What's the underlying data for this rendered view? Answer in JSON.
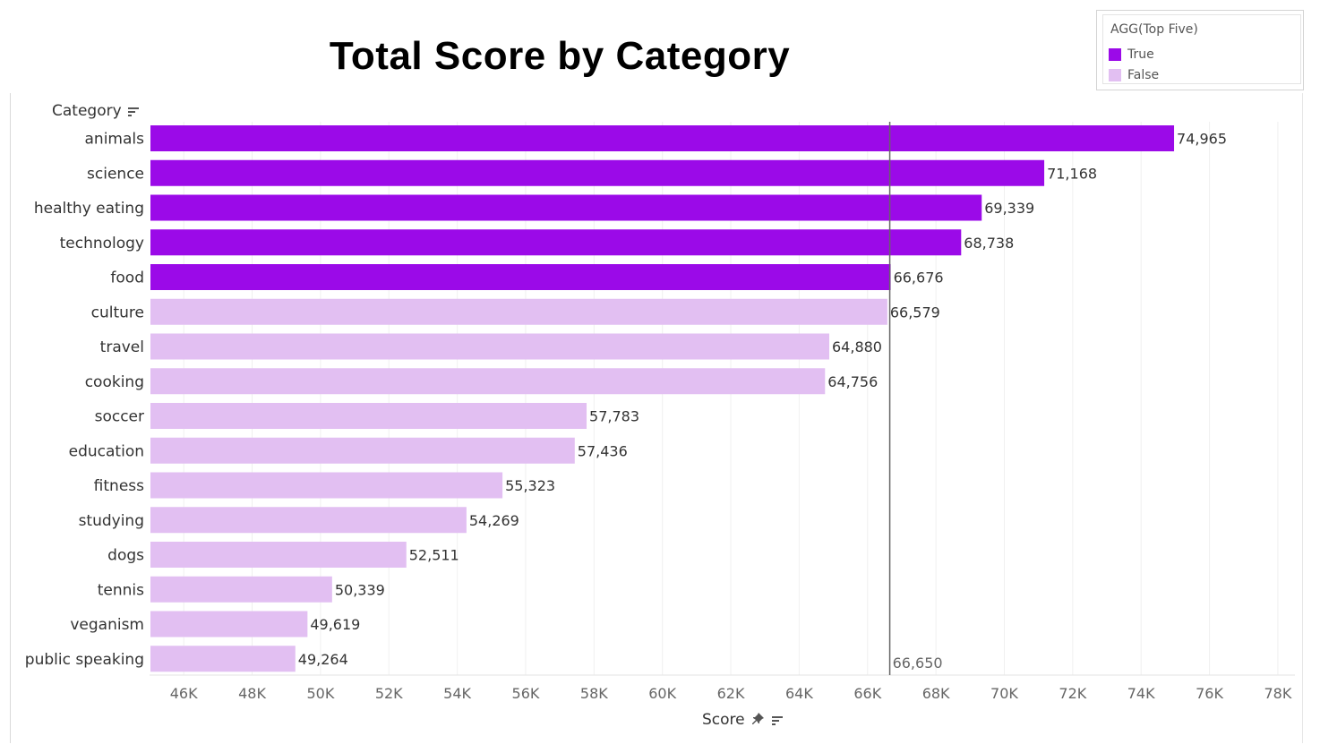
{
  "legend": {
    "title": "AGG(Top Five)",
    "items": [
      {
        "label": "True",
        "color": "#9b0ae8"
      },
      {
        "label": "False",
        "color": "#e2bff2"
      }
    ]
  },
  "icons": {
    "sort": "sort-icon",
    "pin": "pin-icon"
  },
  "chart_data": {
    "type": "bar",
    "orientation": "horizontal",
    "title": "Total Score by Category",
    "ylabel": "Category",
    "xlabel": "Score",
    "categories": [
      "animals",
      "science",
      "healthy eating",
      "technology",
      "food",
      "culture",
      "travel",
      "cooking",
      "soccer",
      "education",
      "fitness",
      "studying",
      "dogs",
      "tennis",
      "veganism",
      "public speaking"
    ],
    "values": [
      74965,
      71168,
      69339,
      68738,
      66676,
      66579,
      64880,
      64756,
      57783,
      57436,
      55323,
      54269,
      52511,
      50339,
      49619,
      49264
    ],
    "value_labels": [
      "74,965",
      "71,168",
      "69,339",
      "68,738",
      "66,676",
      "66,579",
      "64,880",
      "64,756",
      "57,783",
      "57,436",
      "55,323",
      "54,269",
      "52,511",
      "50,339",
      "49,619",
      "49,264"
    ],
    "top_five": [
      true,
      true,
      true,
      true,
      true,
      false,
      false,
      false,
      false,
      false,
      false,
      false,
      false,
      false,
      false,
      false
    ],
    "xlim": [
      45000,
      78500
    ],
    "xticks": [
      46000,
      48000,
      50000,
      52000,
      54000,
      56000,
      58000,
      60000,
      62000,
      64000,
      66000,
      68000,
      70000,
      72000,
      74000,
      76000,
      78000
    ],
    "xtick_labels": [
      "46K",
      "48K",
      "50K",
      "52K",
      "54K",
      "56K",
      "58K",
      "60K",
      "62K",
      "64K",
      "66K",
      "68K",
      "70K",
      "72K",
      "74K",
      "76K",
      "78K"
    ],
    "reference_line": {
      "value": 66650,
      "label": "66,650"
    },
    "colors": {
      "true": "#9b0ae8",
      "false": "#e2bff2",
      "reference": "#666666"
    },
    "grid": "vertical"
  }
}
